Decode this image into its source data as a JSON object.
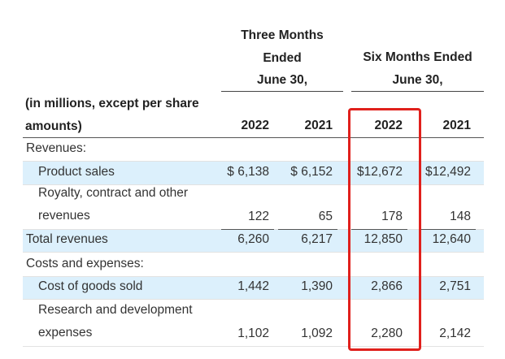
{
  "header": {
    "three_months": [
      "Three Months",
      "Ended",
      "June 30,"
    ],
    "six_months": [
      "Six Months Ended",
      "June 30,"
    ],
    "label": [
      "(in millions, except per share",
      "amounts)"
    ],
    "years": [
      "2022",
      "2021",
      "2022",
      "2021"
    ]
  },
  "rows": [
    {
      "label": [
        "Revenues:"
      ],
      "indent": false,
      "shaded": false
    },
    {
      "label": [
        "Product sales"
      ],
      "values": [
        "$ 6,138",
        "$ 6,152",
        "$12,672",
        "$12,492"
      ],
      "indent": true,
      "shaded": true
    },
    {
      "label": [
        "Royalty, contract and other",
        "revenues"
      ],
      "values": [
        "122",
        "65",
        "178",
        "148"
      ],
      "indent": true,
      "shaded": false
    },
    {
      "label": [
        "Total revenues"
      ],
      "values": [
        "6,260",
        "6,217",
        "12,850",
        "12,640"
      ],
      "indent": false,
      "shaded": true,
      "total": true
    },
    {
      "label": [
        "Costs and expenses:"
      ],
      "indent": false,
      "shaded": false
    },
    {
      "label": [
        "Cost of goods sold"
      ],
      "values": [
        "1,442",
        "1,390",
        "2,866",
        "2,751"
      ],
      "indent": true,
      "shaded": true
    },
    {
      "label": [
        "Research and development",
        "expenses"
      ],
      "values": [
        "1,102",
        "1,092",
        "2,280",
        "2,142"
      ],
      "indent": true,
      "shaded": false
    }
  ]
}
